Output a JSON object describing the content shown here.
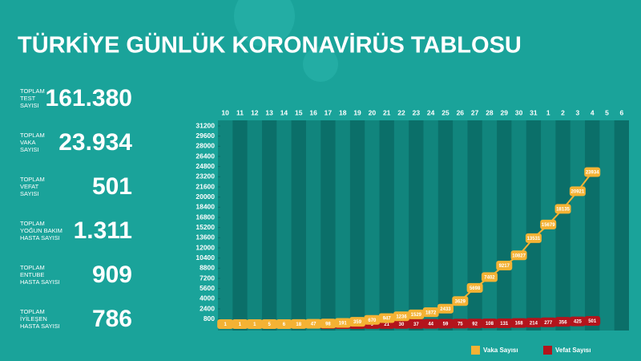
{
  "header": {
    "title": "TÜRKİYE GÜNLÜK KORONAVİRÜS TABLOSU"
  },
  "stats": [
    {
      "label": [
        "TOPLAM",
        "TEST",
        "SAYISI"
      ],
      "value": "161.380"
    },
    {
      "label": [
        "TOPLAM",
        "VAKA",
        "SAYISI"
      ],
      "value": "23.934"
    },
    {
      "label": [
        "TOPLAM",
        "VEFAT",
        "SAYISI"
      ],
      "value": "501"
    },
    {
      "label": [
        "TOPLAM",
        "YOĞUN BAKIM",
        "HASTA SAYISI"
      ],
      "value": "1.311"
    },
    {
      "label": [
        "TOPLAM",
        "ENTUBE",
        "HASTA SAYISI"
      ],
      "value": "909"
    },
    {
      "label": [
        "TOPLAM",
        "İYİLEŞEN",
        "HASTA SAYISI"
      ],
      "value": "786"
    }
  ],
  "chart_data": {
    "type": "line",
    "categories": [
      "10",
      "11",
      "12",
      "13",
      "14",
      "15",
      "16",
      "17",
      "18",
      "19",
      "20",
      "21",
      "22",
      "23",
      "24",
      "25",
      "26",
      "27",
      "28",
      "29",
      "30",
      "31",
      "1",
      "2",
      "3",
      "4",
      "5",
      "6"
    ],
    "series": [
      {
        "name": "Vaka Sayısı",
        "color": "#f4b234",
        "values": [
          1,
          1,
          1,
          5,
          6,
          18,
          47,
          98,
          191,
          359,
          670,
          947,
          1236,
          1529,
          1872,
          2433,
          3629,
          5698,
          7402,
          9217,
          10827,
          13531,
          15679,
          18135,
          20921,
          23934,
          null,
          null
        ]
      },
      {
        "name": "Vefat Sayısı",
        "color": "#b3141c",
        "values": [
          null,
          null,
          null,
          null,
          null,
          null,
          null,
          1,
          2,
          3,
          9,
          21,
          30,
          37,
          44,
          59,
          75,
          92,
          108,
          131,
          168,
          214,
          277,
          356,
          425,
          501,
          null,
          null
        ]
      }
    ],
    "ylim": [
      0,
      31200
    ],
    "yticks": [
      800,
      2400,
      4000,
      5600,
      7200,
      8800,
      10400,
      12000,
      13600,
      15200,
      16800,
      18400,
      20000,
      21600,
      23200,
      24800,
      26400,
      28000,
      29600,
      31200
    ]
  }
}
